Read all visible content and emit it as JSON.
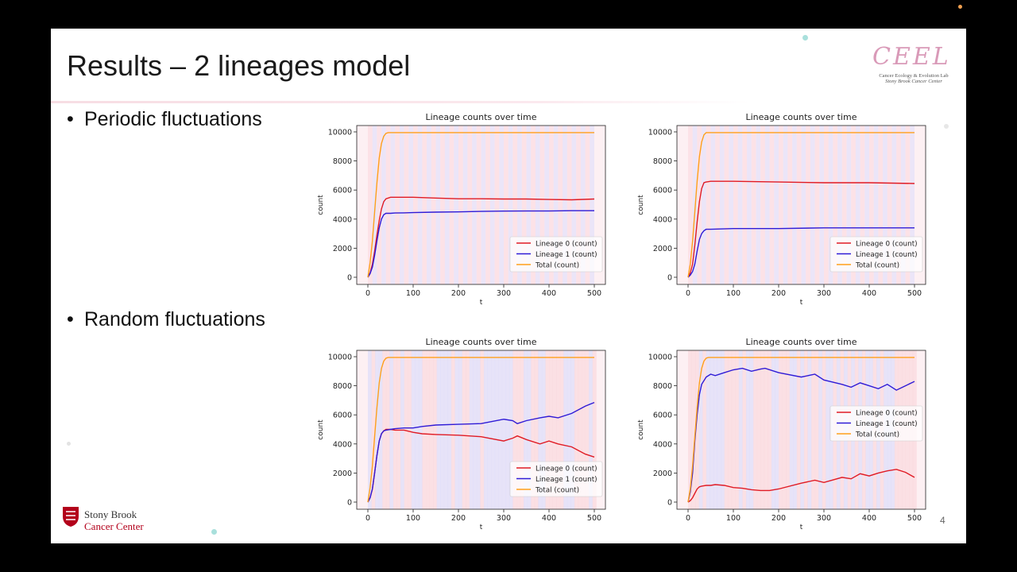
{
  "slide": {
    "title": "Results – 2 lineages model",
    "bullets": [
      "Periodic fluctuations",
      "Random fluctuations"
    ],
    "page_number": "4",
    "logos": {
      "ceel_text": "CEEL",
      "ceel_line1": "Cancer Ecology & Evolution Lab",
      "ceel_line2": "Stony Brook Cancer Center",
      "sbc_line1": "Stony Brook",
      "sbc_line2": "Cancer Center"
    }
  },
  "colors": {
    "lineage0": "#e01b24",
    "lineage1": "#2f1bd6",
    "total": "#ff9f1a",
    "bg_red": "#fbd7dc",
    "bg_blue": "#dcdcfb"
  },
  "chart_data": [
    {
      "type": "line",
      "title": "Lineage counts over time",
      "xlabel": "t",
      "ylabel": "count",
      "xlim": [
        0,
        500
      ],
      "ylim": [
        0,
        10000
      ],
      "xticks": [
        0,
        100,
        200,
        300,
        400,
        500
      ],
      "yticks": [
        0,
        2000,
        4000,
        6000,
        8000,
        10000
      ],
      "legend": "bottom-right",
      "background": "periodic",
      "series": [
        {
          "name": "Lineage 0 (count)",
          "x": [
            0,
            5,
            10,
            15,
            20,
            25,
            30,
            35,
            40,
            50,
            60,
            80,
            100,
            150,
            200,
            250,
            300,
            350,
            400,
            450,
            500
          ],
          "y": [
            0,
            300,
            900,
            1800,
            2900,
            3900,
            4700,
            5200,
            5400,
            5500,
            5500,
            5500,
            5500,
            5450,
            5400,
            5400,
            5380,
            5380,
            5350,
            5330,
            5380
          ]
        },
        {
          "name": "Lineage 1 (count)",
          "x": [
            0,
            5,
            10,
            15,
            20,
            25,
            30,
            35,
            40,
            50,
            60,
            80,
            100,
            150,
            200,
            250,
            300,
            350,
            400,
            450,
            500
          ],
          "y": [
            0,
            250,
            700,
            1500,
            2500,
            3400,
            4000,
            4300,
            4400,
            4400,
            4420,
            4430,
            4450,
            4480,
            4500,
            4530,
            4550,
            4560,
            4560,
            4580,
            4580
          ]
        },
        {
          "name": "Total (count)",
          "x": [
            0,
            5,
            10,
            15,
            20,
            25,
            30,
            35,
            40,
            45,
            50,
            100,
            200,
            300,
            400,
            500
          ],
          "y": [
            0,
            1000,
            2500,
            4500,
            6500,
            8200,
            9200,
            9700,
            9900,
            9950,
            9950,
            9950,
            9950,
            9950,
            9950,
            9950
          ]
        }
      ]
    },
    {
      "type": "line",
      "title": "Lineage counts over time",
      "xlabel": "t",
      "ylabel": "count",
      "xlim": [
        0,
        500
      ],
      "ylim": [
        0,
        10000
      ],
      "xticks": [
        0,
        100,
        200,
        300,
        400,
        500
      ],
      "yticks": [
        0,
        2000,
        4000,
        6000,
        8000,
        10000
      ],
      "legend": "bottom-right",
      "background": "periodic",
      "series": [
        {
          "name": "Lineage 0 (count)",
          "x": [
            0,
            5,
            10,
            15,
            20,
            25,
            30,
            35,
            40,
            50,
            100,
            200,
            300,
            400,
            500
          ],
          "y": [
            0,
            300,
            900,
            2200,
            3800,
            5200,
            6100,
            6500,
            6550,
            6600,
            6600,
            6550,
            6500,
            6500,
            6450
          ]
        },
        {
          "name": "Lineage 1 (count)",
          "x": [
            0,
            5,
            10,
            15,
            20,
            25,
            30,
            35,
            40,
            50,
            100,
            200,
            300,
            400,
            500
          ],
          "y": [
            0,
            150,
            400,
            900,
            1800,
            2600,
            3000,
            3200,
            3300,
            3300,
            3350,
            3350,
            3400,
            3400,
            3400
          ]
        },
        {
          "name": "Total (count)",
          "x": [
            0,
            5,
            10,
            15,
            20,
            25,
            30,
            35,
            40,
            45,
            50,
            100,
            200,
            300,
            400,
            500
          ],
          "y": [
            0,
            900,
            2500,
            4500,
            6600,
            8300,
            9300,
            9800,
            9950,
            9950,
            9950,
            9950,
            9950,
            9950,
            9950,
            9950
          ]
        }
      ]
    },
    {
      "type": "line",
      "title": "Lineage counts over time",
      "xlabel": "t",
      "ylabel": "count",
      "xlim": [
        0,
        500
      ],
      "ylim": [
        0,
        10000
      ],
      "xticks": [
        0,
        100,
        200,
        300,
        400,
        500
      ],
      "yticks": [
        0,
        2000,
        4000,
        6000,
        8000,
        10000
      ],
      "legend": "bottom-right",
      "background": "random",
      "series": [
        {
          "name": "Lineage 0 (count)",
          "x": [
            0,
            5,
            10,
            15,
            20,
            25,
            30,
            35,
            40,
            50,
            60,
            80,
            100,
            120,
            150,
            200,
            250,
            300,
            320,
            330,
            350,
            380,
            400,
            420,
            450,
            480,
            500
          ],
          "y": [
            0,
            300,
            900,
            2000,
            3200,
            4200,
            4700,
            4900,
            5000,
            5000,
            4950,
            4950,
            4800,
            4700,
            4650,
            4600,
            4500,
            4200,
            4400,
            4550,
            4300,
            4000,
            4200,
            4000,
            3800,
            3300,
            3100
          ]
        },
        {
          "name": "Lineage 1 (count)",
          "x": [
            0,
            5,
            10,
            15,
            20,
            25,
            30,
            35,
            40,
            50,
            60,
            80,
            100,
            120,
            150,
            200,
            250,
            300,
            320,
            330,
            350,
            380,
            400,
            420,
            450,
            480,
            500
          ],
          "y": [
            0,
            300,
            900,
            2000,
            3200,
            4200,
            4700,
            4900,
            4950,
            5000,
            5050,
            5100,
            5100,
            5200,
            5300,
            5350,
            5400,
            5700,
            5600,
            5400,
            5600,
            5800,
            5900,
            5800,
            6100,
            6600,
            6850
          ]
        },
        {
          "name": "Total (count)",
          "x": [
            0,
            5,
            10,
            15,
            20,
            25,
            30,
            35,
            40,
            45,
            50,
            100,
            200,
            300,
            400,
            500
          ],
          "y": [
            0,
            1000,
            2500,
            4500,
            6500,
            8200,
            9200,
            9700,
            9900,
            9950,
            9950,
            9950,
            9950,
            9950,
            9950,
            9950
          ]
        }
      ]
    },
    {
      "type": "line",
      "title": "Lineage counts over time",
      "xlabel": "t",
      "ylabel": "count",
      "xlim": [
        0,
        500
      ],
      "ylim": [
        0,
        10000
      ],
      "xticks": [
        0,
        100,
        200,
        300,
        400,
        500
      ],
      "yticks": [
        0,
        2000,
        4000,
        6000,
        8000,
        10000
      ],
      "legend": "center-right",
      "background": "random",
      "series": [
        {
          "name": "Lineage 0 (count)",
          "x": [
            0,
            5,
            10,
            15,
            20,
            25,
            30,
            40,
            50,
            60,
            80,
            100,
            120,
            140,
            160,
            180,
            200,
            250,
            280,
            300,
            340,
            360,
            380,
            400,
            420,
            440,
            460,
            480,
            500
          ],
          "y": [
            0,
            100,
            300,
            600,
            900,
            1050,
            1100,
            1150,
            1150,
            1200,
            1150,
            1000,
            950,
            850,
            800,
            800,
            900,
            1300,
            1500,
            1350,
            1700,
            1600,
            1950,
            1800,
            2000,
            2150,
            2250,
            2050,
            1700
          ]
        },
        {
          "name": "Lineage 1 (count)",
          "x": [
            0,
            5,
            10,
            15,
            20,
            25,
            30,
            40,
            50,
            60,
            80,
            100,
            120,
            140,
            160,
            170,
            200,
            250,
            280,
            300,
            340,
            360,
            380,
            400,
            420,
            440,
            460,
            480,
            500
          ],
          "y": [
            0,
            700,
            2000,
            4200,
            6000,
            7400,
            8100,
            8600,
            8800,
            8700,
            8900,
            9100,
            9200,
            9000,
            9150,
            9200,
            8900,
            8600,
            8800,
            8400,
            8100,
            7900,
            8200,
            8000,
            7800,
            8100,
            7700,
            8000,
            8300
          ]
        },
        {
          "name": "Total (count)",
          "x": [
            0,
            5,
            10,
            15,
            20,
            25,
            30,
            35,
            40,
            45,
            50,
            100,
            200,
            300,
            400,
            500
          ],
          "y": [
            0,
            900,
            2500,
            4500,
            6500,
            8200,
            9200,
            9700,
            9900,
            9950,
            9950,
            9950,
            9950,
            9950,
            9950,
            9950
          ]
        }
      ]
    }
  ]
}
